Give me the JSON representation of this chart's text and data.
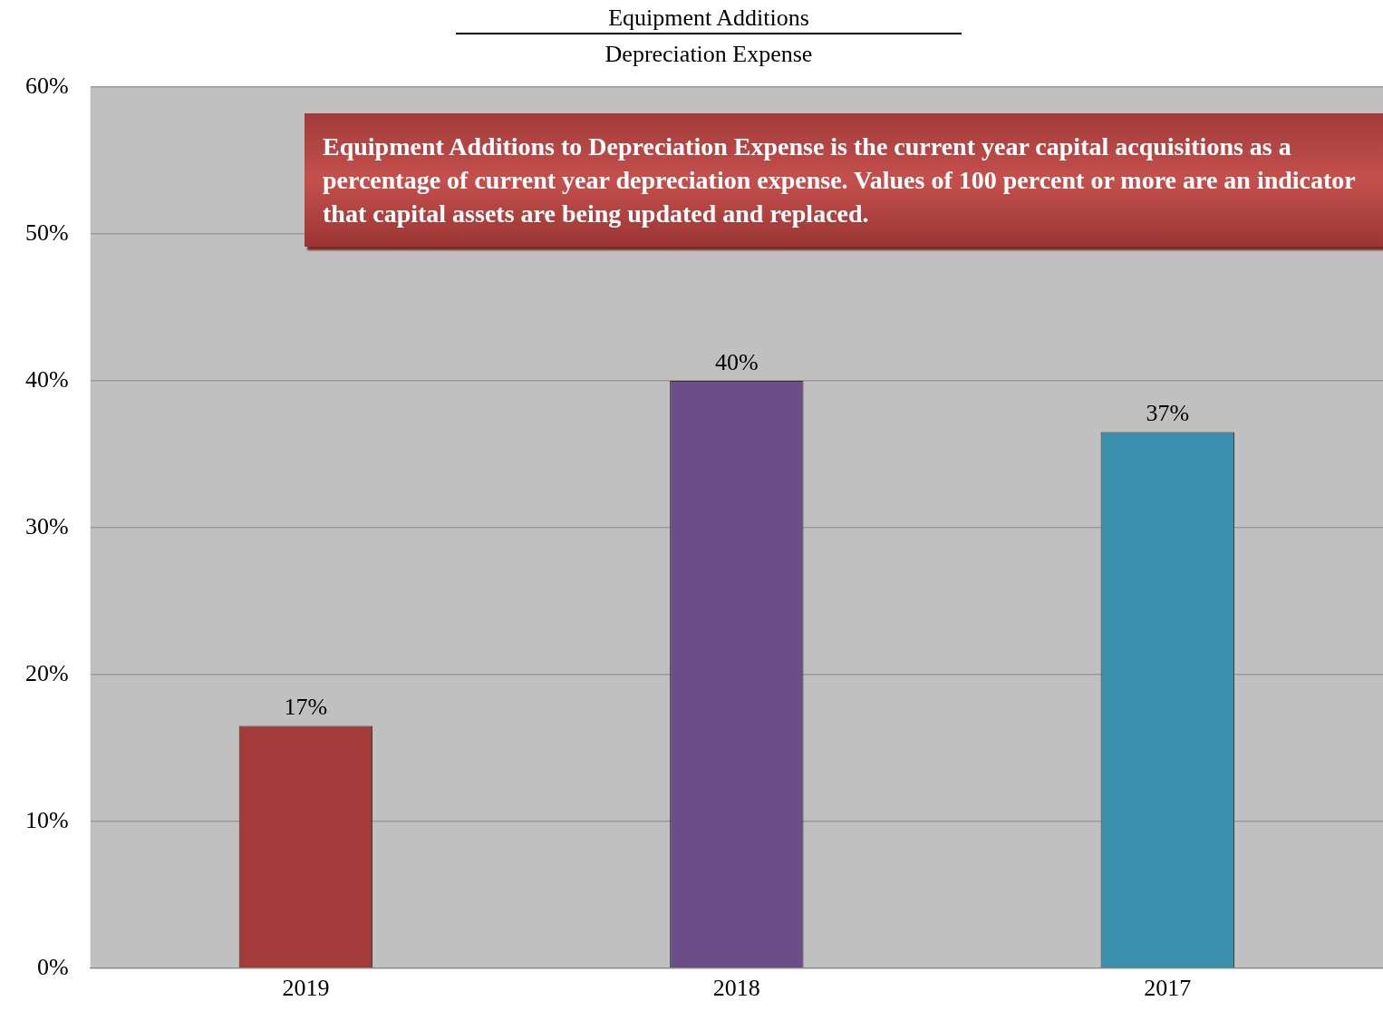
{
  "chart_data": {
    "type": "bar",
    "title": "Equipment Additions",
    "subtitle": "Depreciation Expense",
    "categories": [
      "2019",
      "2018",
      "2017"
    ],
    "values": [
      16.5,
      40,
      36.5
    ],
    "colors": [
      "#a33b3a",
      "#6b4e87",
      "#3a8fac"
    ],
    "value_labels": [
      "17%",
      "40%",
      "37%"
    ],
    "ylim": [
      0,
      60
    ],
    "yticks": [
      {
        "value": 0,
        "label": "0%"
      },
      {
        "value": 10,
        "label": "10%"
      },
      {
        "value": 20,
        "label": "20%"
      },
      {
        "value": 30,
        "label": "30%"
      },
      {
        "value": 40,
        "label": "40%"
      },
      {
        "value": 50,
        "label": "50%"
      },
      {
        "value": 60,
        "label": "60%"
      }
    ],
    "grid": "y",
    "annotations": [
      "Equipment Additions to Depreciation Expense is the current year capital acquisitions as a percentage of current year depreciation expense. Values of 100 percent or more are an indicator that capital assets are being updated and replaced."
    ]
  }
}
